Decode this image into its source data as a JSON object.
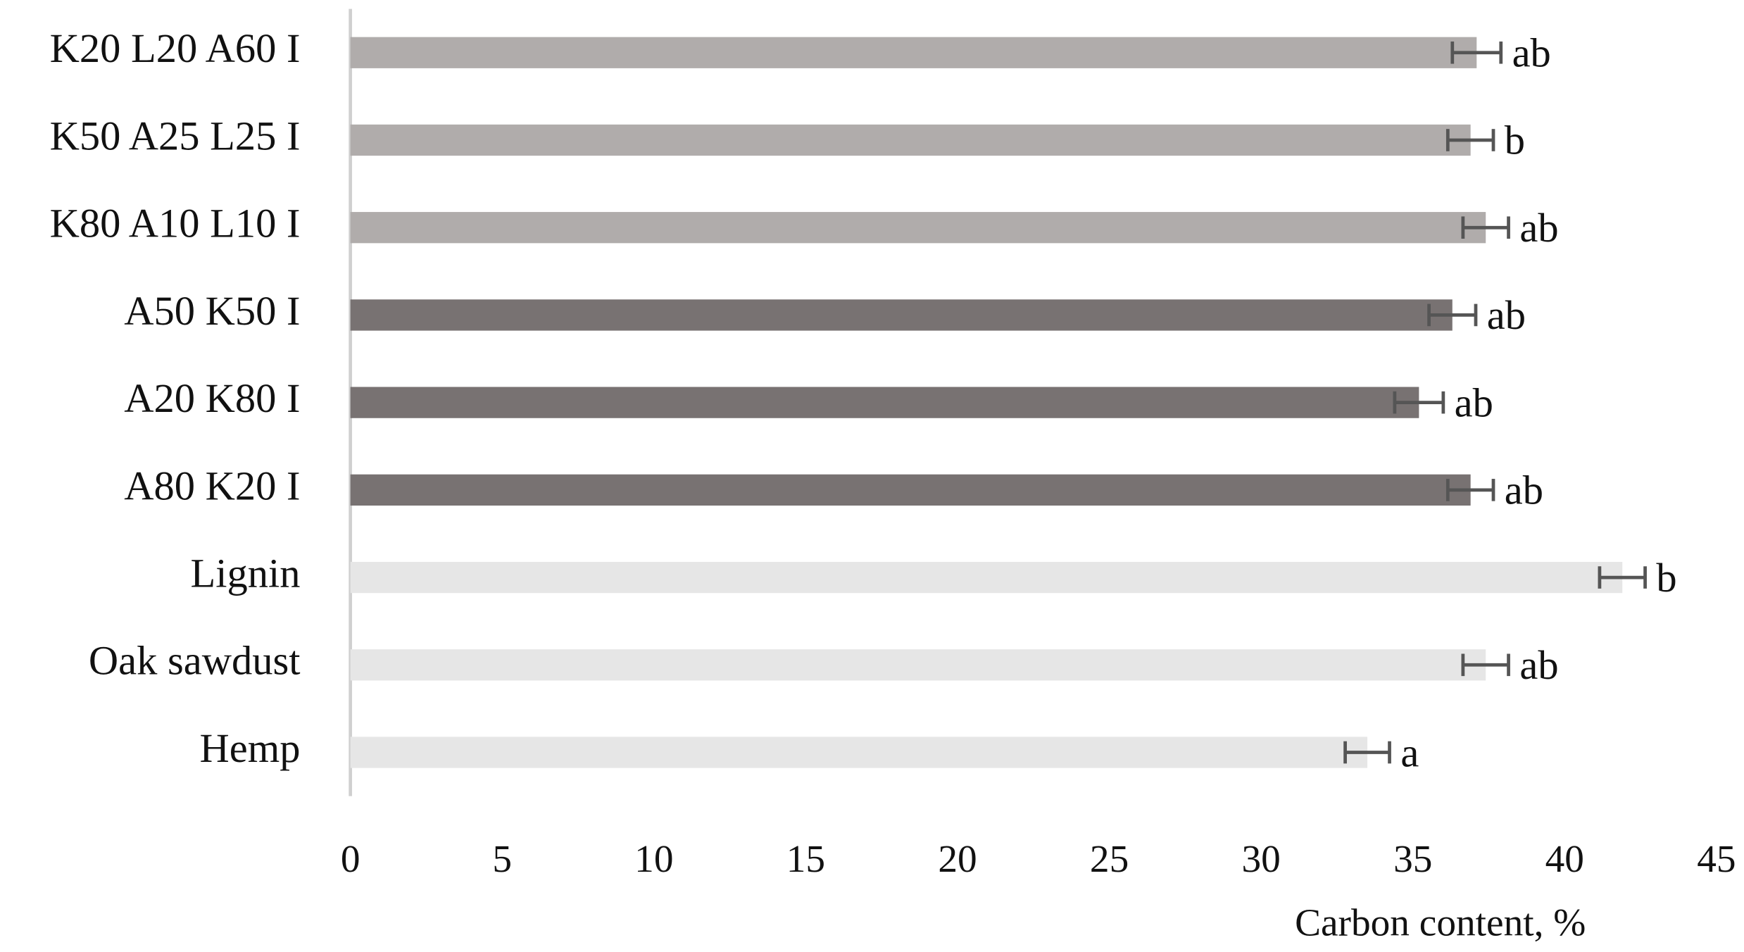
{
  "chart_data": {
    "type": "hbar",
    "categories": [
      "K20 L20 A60 I",
      "K50 A25 L25 I",
      "K80 A10 L10 I",
      "A50 K50 I",
      "A20 K80 I",
      "A80 K20 I",
      "Lignin",
      "Oak sawdust",
      "Hemp"
    ],
    "values": [
      37.1,
      36.9,
      37.4,
      36.3,
      35.2,
      36.9,
      41.9,
      37.4,
      33.5
    ],
    "errors": [
      0.8,
      0.75,
      0.75,
      0.77,
      0.8,
      0.75,
      0.75,
      0.75,
      0.73
    ],
    "annotations": [
      "ab",
      "b",
      "ab",
      "ab",
      "ab",
      "ab",
      "b",
      "ab",
      "a"
    ],
    "colors": [
      "#b0acab",
      "#b0acab",
      "#b0acab",
      "#787272",
      "#787272",
      "#787272",
      "#e6e6e6",
      "#e6e6e6",
      "#e6e6e6"
    ],
    "error_color": "#555555",
    "x_label": "Carbon content, %",
    "xlim": [
      0,
      45
    ],
    "xticks": [
      0,
      5,
      10,
      15,
      20,
      25,
      30,
      35,
      40,
      45
    ]
  }
}
